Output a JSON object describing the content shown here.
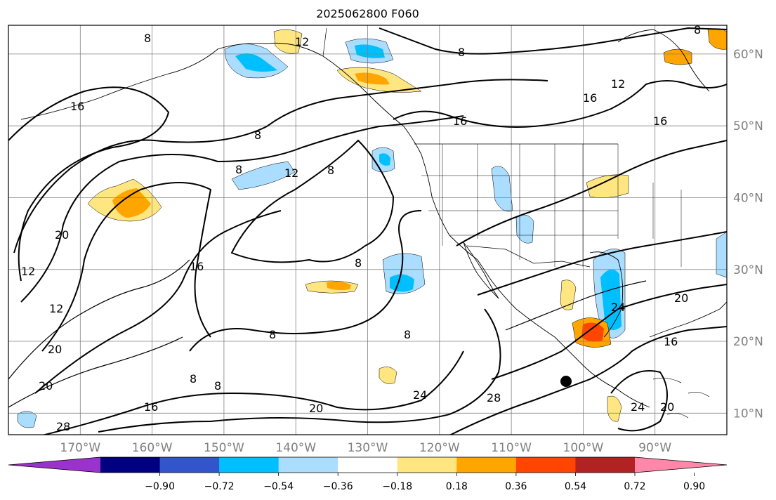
{
  "title": "2025062800 F060",
  "map": {
    "projection": "PlateCarree",
    "lon_range": [
      -180,
      -80
    ],
    "lat_range": [
      7,
      64
    ],
    "lat_ticks": [
      "60°N",
      "50°N",
      "40°N",
      "30°N",
      "20°N",
      "10°N"
    ],
    "lat_values": [
      60,
      50,
      40,
      30,
      20,
      10
    ],
    "lon_ticks": [
      "170°W",
      "160°W",
      "150°W",
      "140°W",
      "130°W",
      "120°W",
      "110°W",
      "100°W",
      "90°W"
    ],
    "lon_values": [
      -170,
      -160,
      -150,
      -140,
      -130,
      -120,
      -110,
      -100,
      -90
    ],
    "contour_labels": [
      "8",
      "12",
      "16",
      "20",
      "24",
      "28"
    ],
    "colors": {
      "contour": "#000000",
      "gridline": "#808080"
    }
  },
  "colorbar": {
    "ticks": [
      "−0.90",
      "−0.72",
      "−0.54",
      "−0.36",
      "−0.18",
      "0.18",
      "0.36",
      "0.54",
      "0.72",
      "0.90"
    ],
    "colors": [
      "#9933cc",
      "#000080",
      "#3355cc",
      "#00bfff",
      "#aaddff",
      "#ffffff",
      "#ffe680",
      "#ffa500",
      "#ff4500",
      "#b22222",
      "#ff88aa"
    ]
  }
}
